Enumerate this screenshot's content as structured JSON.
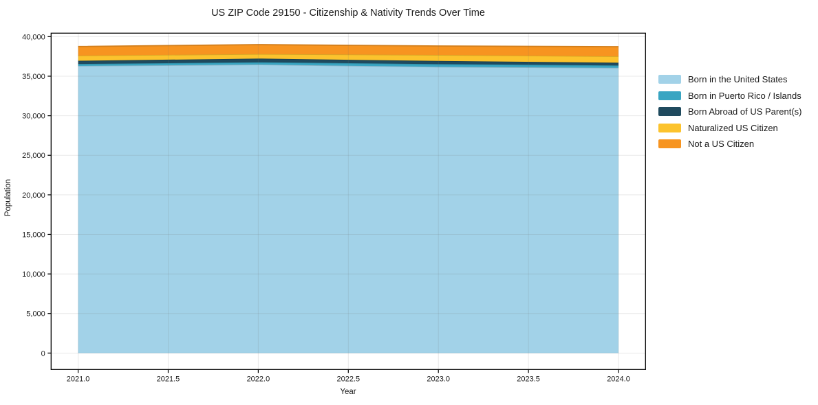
{
  "page": {
    "background": "#ffffff"
  },
  "chart_data": {
    "type": "area",
    "stacked": true,
    "title": "US ZIP Code 29150 - Citizenship & Nativity Trends Over Time",
    "xlabel": "Year",
    "ylabel": "Population",
    "x": [
      2021,
      2022,
      2023,
      2024
    ],
    "series": [
      {
        "name": "Born in the United States",
        "color": "#a2d2e8",
        "values": [
          36300,
          36470,
          36180,
          36060
        ]
      },
      {
        "name": "Born in Puerto Rico / Islands",
        "color": "#39a5c2",
        "values": [
          250,
          290,
          350,
          300
        ]
      },
      {
        "name": "Born Abroad of US Parent(s)",
        "color": "#1f4a5e",
        "values": [
          400,
          465,
          400,
          345
        ]
      },
      {
        "name": "Naturalized US Citizen",
        "color": "#fcc32d",
        "values": [
          650,
          575,
          755,
          810
        ]
      },
      {
        "name": "Not a US Citizen",
        "color": "#f79420",
        "values": [
          1150,
          1190,
          1130,
          1215
        ]
      }
    ],
    "totals_by_year": [
      38750,
      38990,
      38815,
      38730
    ],
    "xlim": [
      2020.85,
      2024.15
    ],
    "ylim": [
      -2080,
      40440
    ],
    "xticks": [
      2021.0,
      2021.5,
      2022.0,
      2022.5,
      2023.0,
      2023.5,
      2024.0
    ],
    "yticks": [
      0,
      5000,
      10000,
      15000,
      20000,
      25000,
      30000,
      35000,
      40000
    ],
    "x_tick_labels": [
      "2021.0",
      "2021.5",
      "2022.0",
      "2022.5",
      "2023.0",
      "2023.5",
      "2024.0"
    ],
    "y_tick_labels": [
      "0",
      "5,000",
      "10,000",
      "15,000",
      "20,000",
      "25,000",
      "30,000",
      "35,000",
      "40,000"
    ],
    "grid": true,
    "legend_position": "right-outside",
    "axis_color": "#000000",
    "text_color": "#1a1a1a"
  }
}
